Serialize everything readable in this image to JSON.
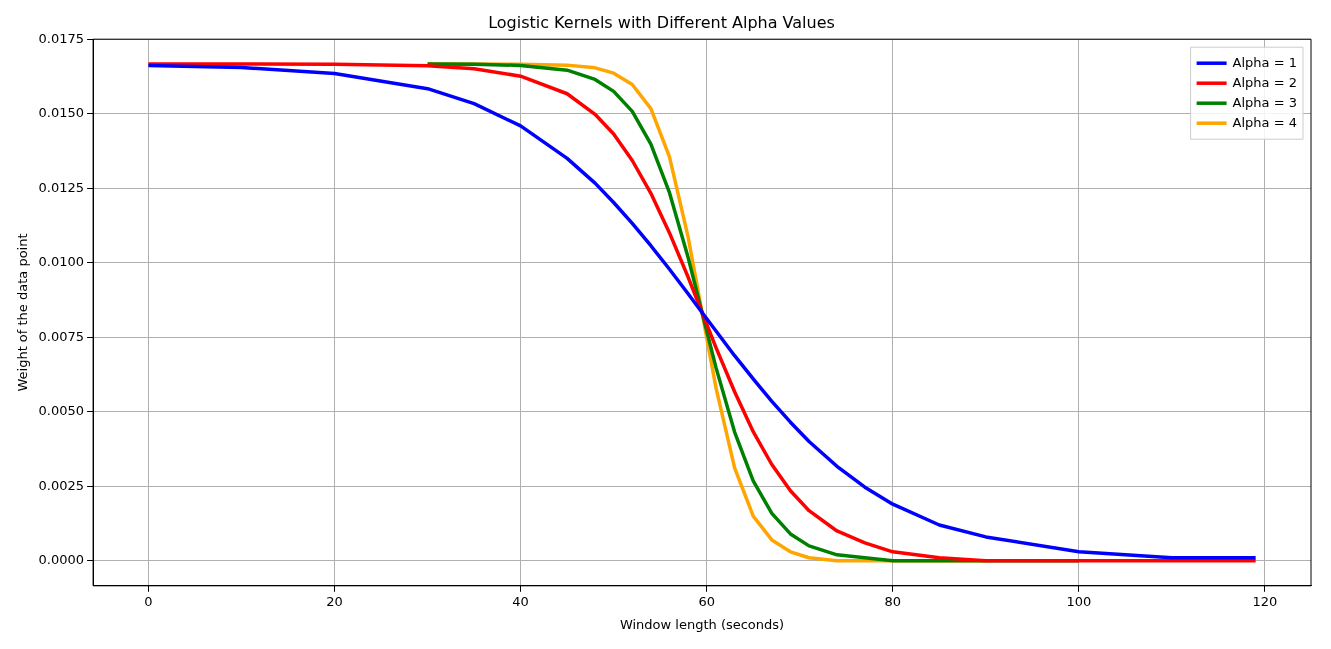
{
  "chart_data": {
    "type": "line",
    "title": "Logistic Kernels with Different Alpha Values",
    "xlabel": "Window length (seconds)",
    "ylabel": "Weight of the data point",
    "x": [
      0,
      10,
      20,
      30,
      35,
      40,
      45,
      48,
      50,
      52,
      54,
      56,
      58,
      59.5,
      61,
      63,
      65,
      67,
      69,
      71,
      74,
      77,
      80,
      85,
      90,
      100,
      110,
      119
    ],
    "series": [
      {
        "name": "Alpha = 1",
        "color": "#0000ff",
        "values": [
          0.01662,
          0.01655,
          0.01635,
          0.01584,
          0.01534,
          0.01459,
          0.0135,
          0.01267,
          0.01202,
          0.01132,
          0.01057,
          0.00978,
          0.00896,
          0.00833,
          0.00771,
          0.00688,
          0.0061,
          0.00535,
          0.00465,
          0.004,
          0.00317,
          0.00247,
          0.0019,
          0.0012,
          0.0008,
          0.0003,
          0.0001,
          0.0001
        ]
      },
      {
        "name": "Alpha = 2",
        "color": "#ff0000",
        "values": [
          0.01667,
          0.01667,
          0.01666,
          0.01661,
          0.01651,
          0.01626,
          0.01567,
          0.01498,
          0.01432,
          0.01343,
          0.01233,
          0.011,
          0.00952,
          0.00833,
          0.00715,
          0.00567,
          0.00433,
          0.00323,
          0.00235,
          0.00168,
          0.001,
          0.0006,
          0.0003,
          0.0001,
          0,
          0,
          0,
          0
        ]
      },
      {
        "name": "Alpha = 3",
        "color": "#008000",
        "values": [
          null,
          null,
          null,
          0.01667,
          0.01666,
          0.01662,
          0.01646,
          0.01615,
          0.01575,
          0.01508,
          0.01398,
          0.01235,
          0.01018,
          0.00833,
          0.00648,
          0.00432,
          0.00268,
          0.00159,
          0.0009,
          0.0005,
          0.0002,
          0.0001,
          0,
          0,
          0,
          0,
          null,
          null
        ]
      },
      {
        "name": "Alpha = 4",
        "color": "#ffa500",
        "values": [
          null,
          null,
          null,
          0.01667,
          0.01667,
          0.01666,
          0.01663,
          0.01654,
          0.01636,
          0.01598,
          0.01517,
          0.01355,
          0.01087,
          0.00833,
          0.0058,
          0.00312,
          0.0015,
          0.0007,
          0.0003,
          0.0001,
          0,
          0,
          0,
          0,
          0,
          null,
          null,
          null
        ]
      }
    ],
    "xlim": [
      -5.95,
      124.95
    ],
    "xticks": [
      0,
      20,
      40,
      60,
      80,
      100,
      120
    ],
    "ylim": [
      -0.00084,
      0.0175
    ],
    "yticks": [
      {
        "value": 0,
        "label": "0.0000"
      },
      {
        "value": 0.0025,
        "label": "0.0025"
      },
      {
        "value": 0.005,
        "label": "0.0050"
      },
      {
        "value": 0.0075,
        "label": "0.0075"
      },
      {
        "value": 0.01,
        "label": "0.0100"
      },
      {
        "value": 0.0125,
        "label": "0.0125"
      },
      {
        "value": 0.015,
        "label": "0.0150"
      },
      {
        "value": 0.0175,
        "label": "0.0175"
      }
    ],
    "grid": true,
    "legend": "top right",
    "marker": "none",
    "line_style": "solid"
  }
}
